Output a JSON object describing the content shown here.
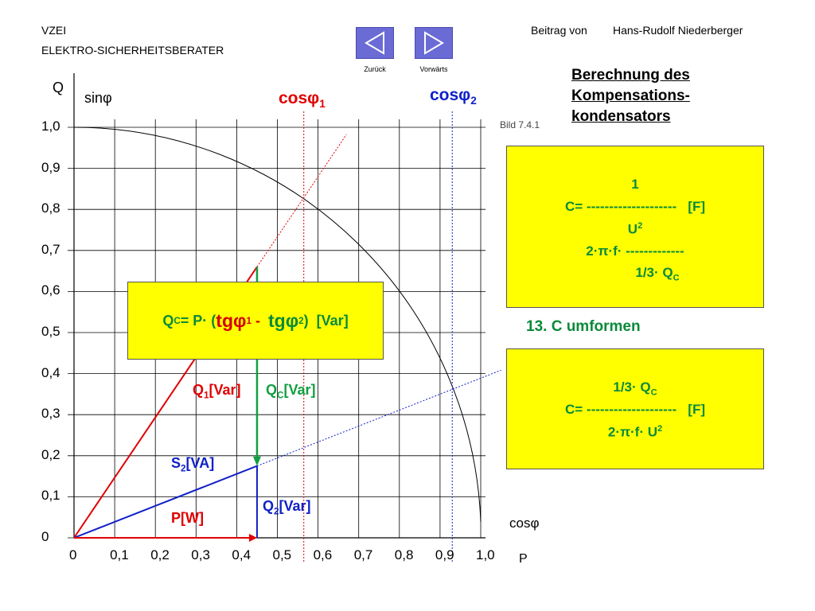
{
  "header": {
    "org_line1": "VZEI",
    "org_line2": "ELEKTRO-SICHERHEITSBERATER",
    "contributor_prefix": "Beitrag von",
    "contributor_name": "Hans-Rudolf Niederberger"
  },
  "nav": {
    "back_label": "Zurück",
    "forward_label": "Vorwärts"
  },
  "title": {
    "line1": "Berechnung des",
    "line2": "Kompensations-",
    "line3": "kondensators"
  },
  "figure_ref": "Bild 7.4.1",
  "formula_box1": {
    "line1": "1",
    "line2": "C= --------------------   [F]",
    "line3": "U",
    "line3_sup": "2",
    "line4": "2·π·f· -------------",
    "line5": "1/3· Q",
    "line5_sub": "C"
  },
  "step_label": "13. C umformen",
  "formula_box2": {
    "line1": "1/3· Q",
    "line1_sub": "C",
    "line2": "C= --------------------   [F]",
    "line3": "2·π·f· U",
    "line3_sup": "2"
  },
  "qc_formula": {
    "q": "Q",
    "q_sub": "C",
    "eq": "= P· (",
    "tg1": "tgφ",
    "tg1_sub": "1",
    "minus": " -  ",
    "tg2": "tgφ",
    "tg2_sub": "2",
    "tail": ")  [Var]"
  },
  "diagram_labels": {
    "y_axis": "Q",
    "sin_label": "sinφ",
    "cos_axis": "cosφ",
    "p_axis": "P",
    "cos1": "cosφ",
    "cos1_sub": "1",
    "cos2": "cosφ",
    "cos2_sub": "2",
    "q1": "Q",
    "q1_sub": "1",
    "q1_unit": "[Var]",
    "qc": "Q",
    "qc_sub": "C",
    "qc_unit": "[Var]",
    "s2": "S",
    "s2_sub": "2",
    "s2_unit": "[VA]",
    "q2": "Q",
    "q2_sub": "2",
    "q2_unit": "[Var]",
    "p": "P[W]"
  },
  "chart_data": {
    "type": "diagram",
    "x_ticks": [
      "0",
      "0,1",
      "0,2",
      "0,3",
      "0,4",
      "0,5",
      "0,6",
      "0,7",
      "0,8",
      "0,9",
      "1,0"
    ],
    "y_ticks": [
      "0",
      "0,1",
      "0,2",
      "0,3",
      "0,4",
      "0,5",
      "0,6",
      "0,7",
      "0,8",
      "0,9",
      "1,0"
    ],
    "xlim": [
      0,
      1.0
    ],
    "ylim": [
      0,
      1.0
    ],
    "grid": true,
    "unit_circle": true,
    "P": 0.45,
    "cos_phi1": 0.565,
    "cos_phi2": 0.93,
    "Q1": 0.66,
    "Q2": 0.175,
    "colors": {
      "red": "#e00000",
      "blue": "#1020c8",
      "green": "#10a040",
      "grid": "#000000",
      "yellow": "#ffff00"
    }
  }
}
